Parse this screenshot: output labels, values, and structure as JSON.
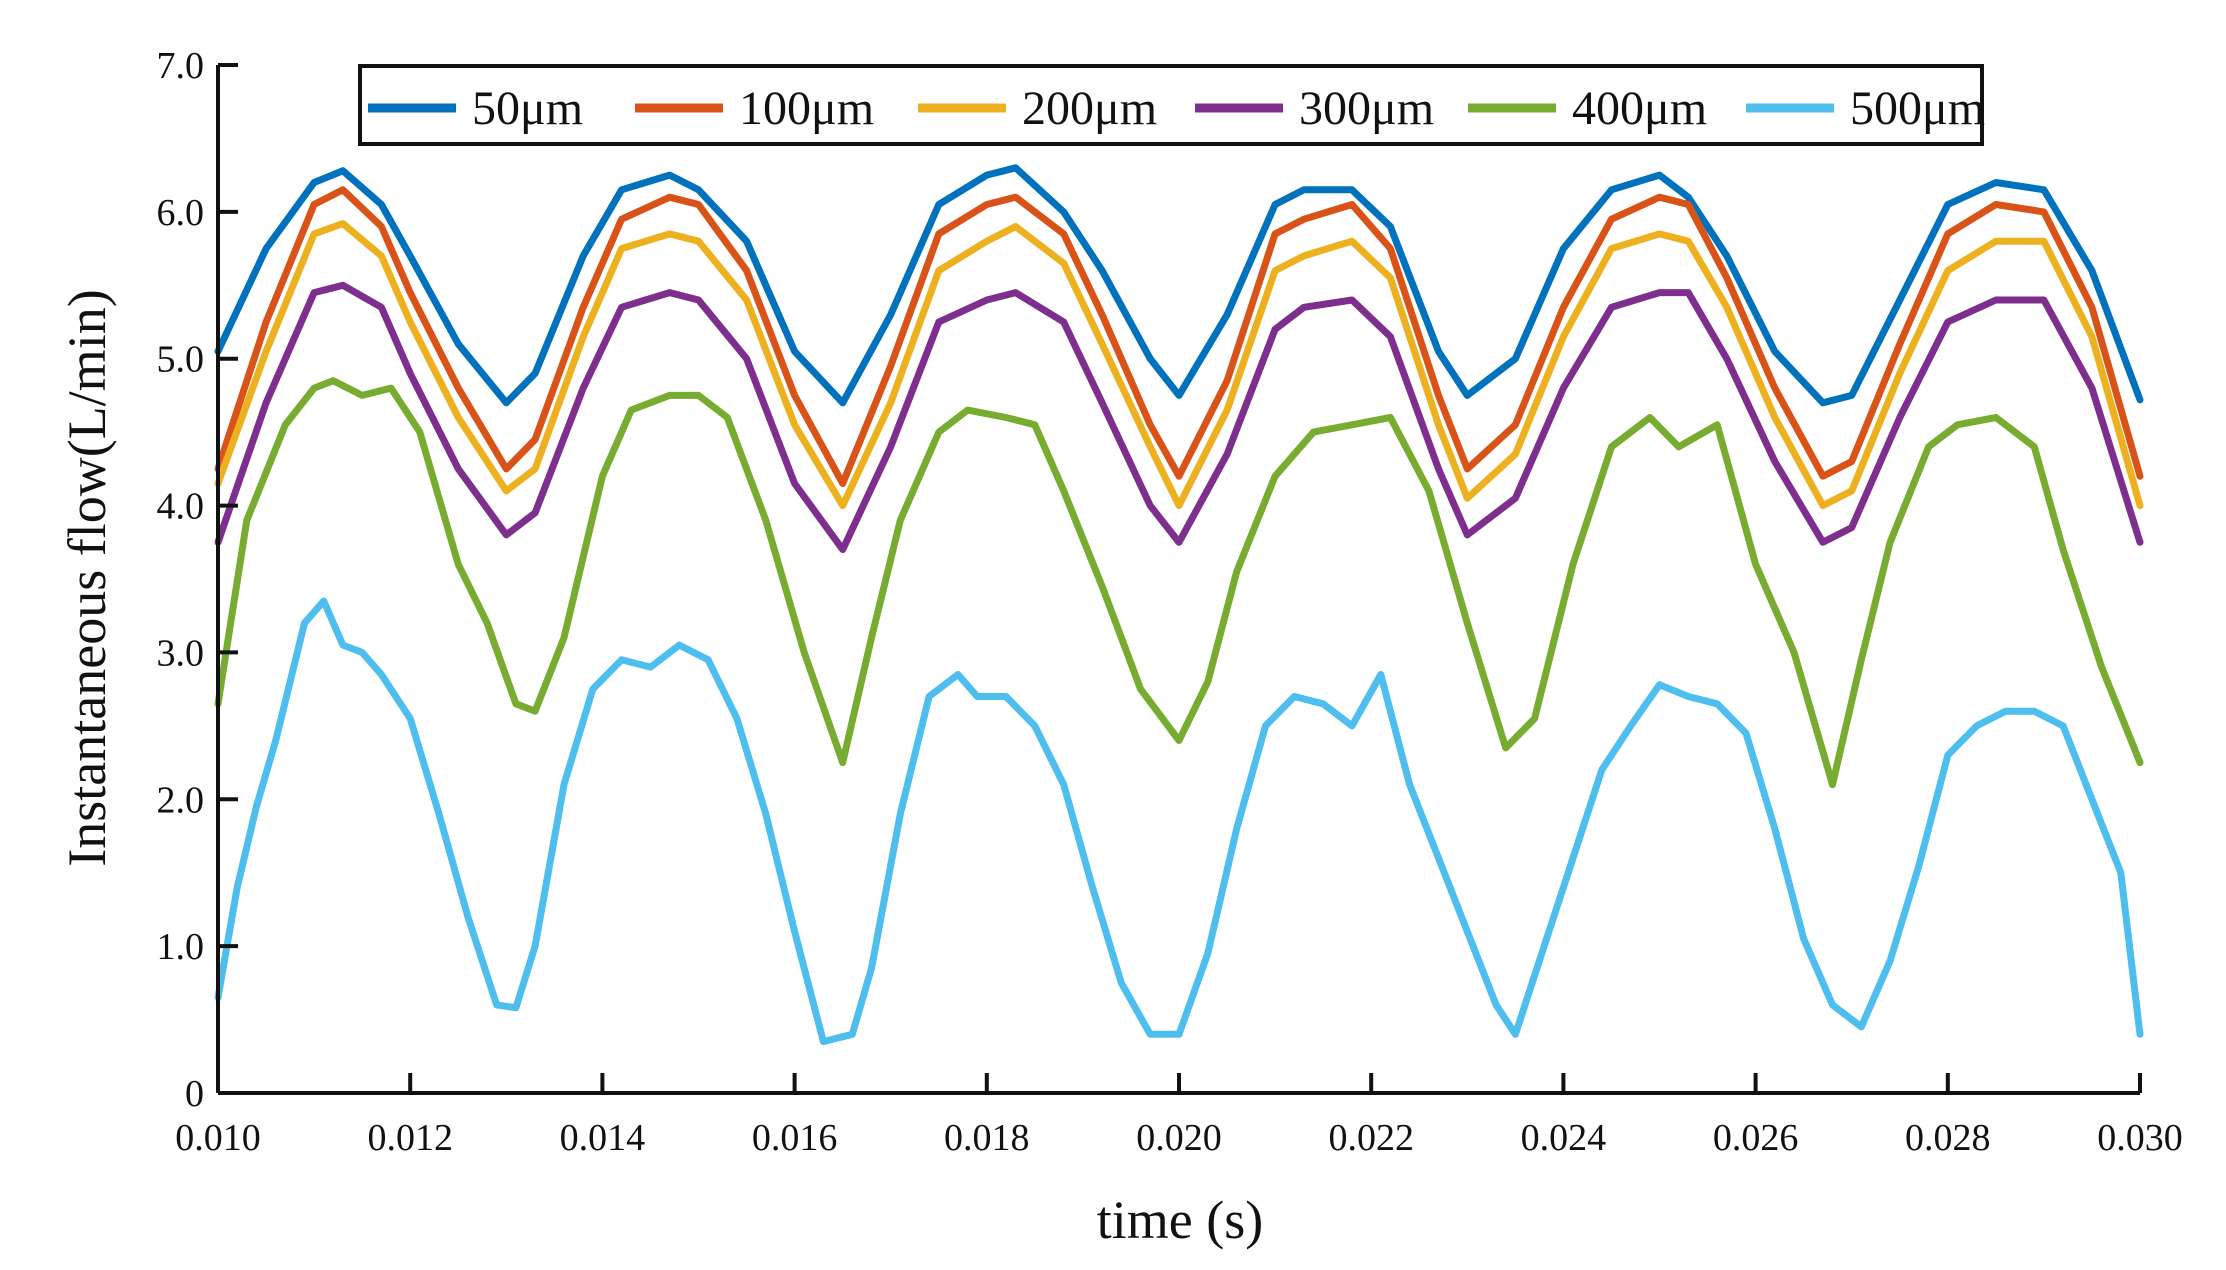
{
  "chart_data": {
    "type": "line",
    "title": "",
    "xlabel": "time (s)",
    "ylabel": "Instantaneous flow(L/min)",
    "xlim": [
      0.01,
      0.03
    ],
    "ylim": [
      0,
      7.0
    ],
    "grid": false,
    "legend_position": "top",
    "x_ticks": [
      "0.010",
      "0.012",
      "0.014",
      "0.016",
      "0.018",
      "0.020",
      "0.022",
      "0.024",
      "0.026",
      "0.028",
      "0.030"
    ],
    "y_ticks": [
      "0",
      "1.0",
      "2.0",
      "3.0",
      "4.0",
      "5.0",
      "6.0",
      "7.0"
    ],
    "series": [
      {
        "name": "50μm",
        "color": "#0072BD",
        "x": [
          0.01,
          0.0105,
          0.011,
          0.0113,
          0.0117,
          0.012,
          0.0125,
          0.013,
          0.0133,
          0.0138,
          0.0142,
          0.0147,
          0.015,
          0.0155,
          0.016,
          0.0165,
          0.017,
          0.0175,
          0.018,
          0.0183,
          0.0188,
          0.0192,
          0.0197,
          0.02,
          0.0205,
          0.021,
          0.0213,
          0.0218,
          0.0222,
          0.0227,
          0.023,
          0.0235,
          0.024,
          0.0245,
          0.025,
          0.0253,
          0.0257,
          0.0262,
          0.0267,
          0.027,
          0.0275,
          0.028,
          0.0285,
          0.029,
          0.0295,
          0.03
        ],
        "y": [
          5.05,
          5.75,
          6.2,
          6.28,
          6.05,
          5.7,
          5.1,
          4.7,
          4.9,
          5.7,
          6.15,
          6.25,
          6.15,
          5.8,
          5.05,
          4.7,
          5.3,
          6.05,
          6.25,
          6.3,
          6.0,
          5.6,
          5.0,
          4.75,
          5.3,
          6.05,
          6.15,
          6.15,
          5.9,
          5.05,
          4.75,
          5.0,
          5.75,
          6.15,
          6.25,
          6.1,
          5.7,
          5.05,
          4.7,
          4.75,
          5.4,
          6.05,
          6.2,
          6.15,
          5.6,
          4.72
        ]
      },
      {
        "name": "100μm",
        "color": "#D95319",
        "x": [
          0.01,
          0.0105,
          0.011,
          0.0113,
          0.0117,
          0.012,
          0.0125,
          0.013,
          0.0133,
          0.0138,
          0.0142,
          0.0147,
          0.015,
          0.0155,
          0.016,
          0.0165,
          0.017,
          0.0175,
          0.018,
          0.0183,
          0.0188,
          0.0192,
          0.0197,
          0.02,
          0.0205,
          0.021,
          0.0213,
          0.0218,
          0.0222,
          0.0227,
          0.023,
          0.0235,
          0.024,
          0.0245,
          0.025,
          0.0253,
          0.0257,
          0.0262,
          0.0267,
          0.027,
          0.0275,
          0.028,
          0.0285,
          0.029,
          0.0295,
          0.03
        ],
        "y": [
          4.25,
          5.25,
          6.05,
          6.15,
          5.9,
          5.45,
          4.8,
          4.25,
          4.45,
          5.35,
          5.95,
          6.1,
          6.05,
          5.6,
          4.75,
          4.15,
          4.95,
          5.85,
          6.05,
          6.1,
          5.85,
          5.3,
          4.55,
          4.2,
          4.85,
          5.85,
          5.95,
          6.05,
          5.75,
          4.75,
          4.25,
          4.55,
          5.35,
          5.95,
          6.1,
          6.05,
          5.55,
          4.8,
          4.2,
          4.3,
          5.1,
          5.85,
          6.05,
          6.0,
          5.35,
          4.2
        ]
      },
      {
        "name": "200μm",
        "color": "#EDB120",
        "x": [
          0.01,
          0.0105,
          0.011,
          0.0113,
          0.0117,
          0.012,
          0.0125,
          0.013,
          0.0133,
          0.0138,
          0.0142,
          0.0147,
          0.015,
          0.0155,
          0.016,
          0.0165,
          0.017,
          0.0175,
          0.018,
          0.0183,
          0.0188,
          0.0192,
          0.0197,
          0.02,
          0.0205,
          0.021,
          0.0213,
          0.0218,
          0.0222,
          0.0227,
          0.023,
          0.0235,
          0.024,
          0.0245,
          0.025,
          0.0253,
          0.0257,
          0.0262,
          0.0267,
          0.027,
          0.0275,
          0.028,
          0.0285,
          0.029,
          0.0295,
          0.03
        ],
        "y": [
          4.15,
          5.05,
          5.85,
          5.92,
          5.7,
          5.25,
          4.6,
          4.1,
          4.25,
          5.15,
          5.75,
          5.85,
          5.8,
          5.4,
          4.55,
          4.0,
          4.7,
          5.6,
          5.8,
          5.9,
          5.65,
          5.1,
          4.4,
          4.0,
          4.65,
          5.6,
          5.7,
          5.8,
          5.55,
          4.55,
          4.05,
          4.35,
          5.15,
          5.75,
          5.85,
          5.8,
          5.35,
          4.6,
          4.0,
          4.1,
          4.9,
          5.6,
          5.8,
          5.8,
          5.15,
          4.0
        ]
      },
      {
        "name": "300μm",
        "color": "#7E2F8E",
        "x": [
          0.01,
          0.0105,
          0.011,
          0.0113,
          0.0117,
          0.012,
          0.0125,
          0.013,
          0.0133,
          0.0138,
          0.0142,
          0.0147,
          0.015,
          0.0155,
          0.016,
          0.0165,
          0.017,
          0.0175,
          0.018,
          0.0183,
          0.0188,
          0.0192,
          0.0197,
          0.02,
          0.0205,
          0.021,
          0.0213,
          0.0218,
          0.0222,
          0.0227,
          0.023,
          0.0235,
          0.024,
          0.0245,
          0.025,
          0.0253,
          0.0257,
          0.0262,
          0.0267,
          0.027,
          0.0275,
          0.028,
          0.0285,
          0.029,
          0.0295,
          0.03
        ],
        "y": [
          3.75,
          4.7,
          5.45,
          5.5,
          5.35,
          4.9,
          4.25,
          3.8,
          3.95,
          4.8,
          5.35,
          5.45,
          5.4,
          5.0,
          4.15,
          3.7,
          4.4,
          5.25,
          5.4,
          5.45,
          5.25,
          4.7,
          4.0,
          3.75,
          4.35,
          5.2,
          5.35,
          5.4,
          5.15,
          4.25,
          3.8,
          4.05,
          4.8,
          5.35,
          5.45,
          5.45,
          5.0,
          4.3,
          3.75,
          3.85,
          4.6,
          5.25,
          5.4,
          5.4,
          4.8,
          3.75
        ]
      },
      {
        "name": "400μm",
        "color": "#77AC30",
        "x": [
          0.01,
          0.0103,
          0.0107,
          0.011,
          0.0112,
          0.0115,
          0.0118,
          0.0121,
          0.0125,
          0.0128,
          0.0131,
          0.0133,
          0.0136,
          0.014,
          0.0143,
          0.0147,
          0.015,
          0.0153,
          0.0157,
          0.0161,
          0.0165,
          0.0168,
          0.0171,
          0.0175,
          0.0178,
          0.0182,
          0.0185,
          0.0188,
          0.0192,
          0.0196,
          0.02,
          0.0203,
          0.0206,
          0.021,
          0.0214,
          0.0218,
          0.0222,
          0.0226,
          0.023,
          0.0234,
          0.0237,
          0.0241,
          0.0245,
          0.0249,
          0.0252,
          0.0256,
          0.026,
          0.0264,
          0.0268,
          0.0271,
          0.0274,
          0.0278,
          0.0281,
          0.0285,
          0.0289,
          0.0292,
          0.0296,
          0.03
        ],
        "y": [
          2.65,
          3.9,
          4.55,
          4.8,
          4.85,
          4.75,
          4.8,
          4.5,
          3.6,
          3.2,
          2.65,
          2.6,
          3.1,
          4.2,
          4.65,
          4.75,
          4.75,
          4.6,
          3.9,
          3.0,
          2.25,
          3.1,
          3.9,
          4.5,
          4.65,
          4.6,
          4.55,
          4.1,
          3.45,
          2.75,
          2.4,
          2.8,
          3.55,
          4.2,
          4.5,
          4.55,
          4.6,
          4.1,
          3.2,
          2.35,
          2.55,
          3.6,
          4.4,
          4.6,
          4.4,
          4.55,
          3.6,
          3.0,
          2.1,
          2.95,
          3.75,
          4.4,
          4.55,
          4.6,
          4.4,
          3.7,
          2.9,
          2.25
        ]
      },
      {
        "name": "500μm",
        "color": "#4DBEEE",
        "x": [
          0.01,
          0.0102,
          0.0104,
          0.0106,
          0.0109,
          0.0111,
          0.0113,
          0.0115,
          0.0117,
          0.012,
          0.0123,
          0.0126,
          0.0129,
          0.0131,
          0.0133,
          0.0136,
          0.0139,
          0.0142,
          0.0145,
          0.0148,
          0.0151,
          0.0154,
          0.0157,
          0.016,
          0.0163,
          0.0166,
          0.0168,
          0.0171,
          0.0174,
          0.0177,
          0.0179,
          0.0182,
          0.0185,
          0.0188,
          0.0191,
          0.0194,
          0.0197,
          0.02,
          0.0203,
          0.0206,
          0.0209,
          0.0212,
          0.0215,
          0.0218,
          0.0221,
          0.0224,
          0.0227,
          0.023,
          0.0233,
          0.0235,
          0.0238,
          0.0241,
          0.0244,
          0.0247,
          0.025,
          0.0253,
          0.0256,
          0.0259,
          0.0262,
          0.0265,
          0.0268,
          0.0271,
          0.0274,
          0.0277,
          0.028,
          0.0283,
          0.0286,
          0.0289,
          0.0292,
          0.0295,
          0.0298,
          0.03
        ],
        "y": [
          0.65,
          1.4,
          1.95,
          2.4,
          3.2,
          3.35,
          3.05,
          3.0,
          2.85,
          2.55,
          1.9,
          1.2,
          0.6,
          0.58,
          1.0,
          2.1,
          2.75,
          2.95,
          2.9,
          3.05,
          2.95,
          2.55,
          1.9,
          1.1,
          0.35,
          0.4,
          0.85,
          1.9,
          2.7,
          2.85,
          2.7,
          2.7,
          2.5,
          2.1,
          1.4,
          0.75,
          0.4,
          0.4,
          0.95,
          1.8,
          2.5,
          2.7,
          2.65,
          2.5,
          2.85,
          2.1,
          1.6,
          1.1,
          0.6,
          0.4,
          1.0,
          1.6,
          2.2,
          2.5,
          2.78,
          2.7,
          2.65,
          2.45,
          1.8,
          1.05,
          0.6,
          0.45,
          0.9,
          1.55,
          2.3,
          2.5,
          2.6,
          2.6,
          2.5,
          2.0,
          1.5,
          0.4
        ]
      }
    ]
  }
}
